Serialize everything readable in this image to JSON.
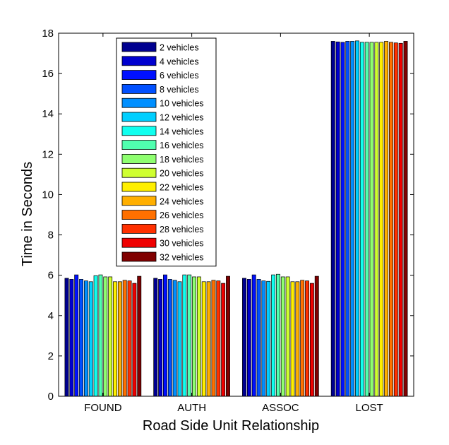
{
  "chart_data": {
    "type": "bar",
    "title": "",
    "xlabel": "Road Side Unit Relationship",
    "ylabel": "Time in Seconds",
    "ylim": [
      0,
      18
    ],
    "yticks": [
      0,
      2,
      4,
      6,
      8,
      10,
      12,
      14,
      16,
      18
    ],
    "grid": false,
    "legend_position": "top-left",
    "categories": [
      "FOUND",
      "AUTH",
      "ASSOC",
      "LOST"
    ],
    "series": [
      {
        "name": "2 vehicles",
        "color": "#00008F",
        "values": [
          5.85,
          5.85,
          5.85,
          17.6
        ]
      },
      {
        "name": "4 vehicles",
        "color": "#0000CF",
        "values": [
          5.8,
          5.8,
          5.8,
          17.57
        ]
      },
      {
        "name": "6 vehicles",
        "color": "#0010FF",
        "values": [
          6.02,
          6.02,
          6.02,
          17.55
        ]
      },
      {
        "name": "8 vehicles",
        "color": "#0050FF",
        "values": [
          5.8,
          5.8,
          5.8,
          17.6
        ]
      },
      {
        "name": "10 vehicles",
        "color": "#008FFF",
        "values": [
          5.72,
          5.75,
          5.72,
          17.6
        ]
      },
      {
        "name": "12 vehicles",
        "color": "#00CFFF",
        "values": [
          5.68,
          5.68,
          5.7,
          17.62
        ]
      },
      {
        "name": "14 vehicles",
        "color": "#10FFEF",
        "values": [
          5.98,
          6.02,
          6.02,
          17.55
        ]
      },
      {
        "name": "16 vehicles",
        "color": "#50FFAF",
        "values": [
          6.02,
          6.02,
          6.05,
          17.55
        ]
      },
      {
        "name": "18 vehicles",
        "color": "#8FFF70",
        "values": [
          5.92,
          5.92,
          5.92,
          17.55
        ]
      },
      {
        "name": "20 vehicles",
        "color": "#CFFF30",
        "values": [
          5.92,
          5.92,
          5.92,
          17.55
        ]
      },
      {
        "name": "22 vehicles",
        "color": "#FFEF00",
        "values": [
          5.68,
          5.68,
          5.68,
          17.55
        ]
      },
      {
        "name": "24 vehicles",
        "color": "#FFAF00",
        "values": [
          5.68,
          5.68,
          5.68,
          17.6
        ]
      },
      {
        "name": "26 vehicles",
        "color": "#FF7000",
        "values": [
          5.75,
          5.75,
          5.75,
          17.55
        ]
      },
      {
        "name": "28 vehicles",
        "color": "#FF3000",
        "values": [
          5.72,
          5.72,
          5.72,
          17.52
        ]
      },
      {
        "name": "30 vehicles",
        "color": "#EF0000",
        "values": [
          5.6,
          5.6,
          5.6,
          17.5
        ]
      },
      {
        "name": "32 vehicles",
        "color": "#800000",
        "values": [
          5.95,
          5.95,
          5.95,
          17.6
        ]
      }
    ]
  }
}
